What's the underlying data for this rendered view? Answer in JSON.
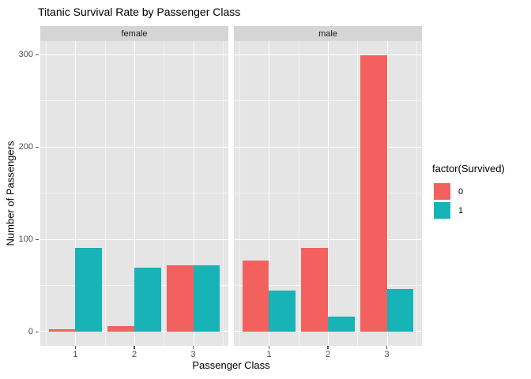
{
  "title": "Titanic Survival Rate by Passenger Class",
  "axes": {
    "x_label": "Passenger Class",
    "y_label": "Number of Passengers"
  },
  "legend": {
    "title": "factor(Survived)",
    "items": [
      {
        "label": "0",
        "color": "#F2615E"
      },
      {
        "label": "1",
        "color": "#17B3B6"
      }
    ]
  },
  "chart_data": {
    "type": "bar",
    "subtype": "dodged-bars-faceted",
    "title": "Titanic Survival Rate by Passenger Class",
    "xlabel": "Passenger Class",
    "ylabel": "Number of Passengers",
    "legend_title": "factor(Survived)",
    "legend_position": "right",
    "categories": [
      "1",
      "2",
      "3"
    ],
    "facets": [
      {
        "name": "female",
        "series": [
          {
            "name": "0",
            "values": [
              3,
              6,
              72
            ]
          },
          {
            "name": "1",
            "values": [
              91,
              70,
              72
            ]
          }
        ]
      },
      {
        "name": "male",
        "series": [
          {
            "name": "0",
            "values": [
              77,
              91,
              300
            ]
          },
          {
            "name": "1",
            "values": [
              45,
              17,
              47
            ]
          }
        ]
      }
    ],
    "colors": {
      "0": "#F2615E",
      "1": "#17B3B6"
    },
    "y_ticks": [
      0,
      100,
      200,
      300
    ],
    "ylim": [
      -15,
      315
    ],
    "xlim": [
      0.405,
      3.595
    ],
    "y_major_gridlines": [
      0,
      100,
      200,
      300
    ],
    "y_minor_gridlines": [
      50,
      150,
      250
    ],
    "x_major_gridlines": [
      1,
      2,
      3
    ],
    "x_minor_gridlines": [
      0.5,
      1.5,
      2.5,
      3.5
    ],
    "bar_width": 0.45,
    "grid": true,
    "panel_background": "#E5E5E5",
    "strip_background": "#D5D5D5"
  }
}
